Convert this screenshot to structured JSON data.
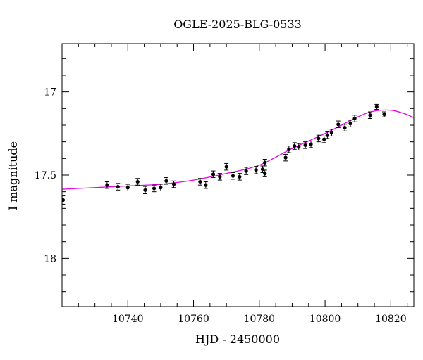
{
  "chart_data": {
    "type": "scatter",
    "title": "OGLE-2025-BLG-0533",
    "xlabel": "HJD - 2450000",
    "ylabel": "I magnitude",
    "xlim": [
      10720.0,
      10827.0
    ],
    "ylim": [
      18.29,
      16.71
    ],
    "y_inverted": true,
    "x_ticks_major": [
      10740,
      10760,
      10780,
      10800,
      10820
    ],
    "x_tick_labels": [
      "10740",
      "10760",
      "10780",
      "10800",
      "10820"
    ],
    "y_ticks_major": [
      17.0,
      17.5,
      18.0
    ],
    "y_tick_labels": [
      "17",
      "17.5",
      "18"
    ],
    "grid": false,
    "colors": {
      "data": "#000000",
      "model": "#e600e6"
    },
    "series": [
      {
        "type": "scatter_errorbar",
        "points": [
          {
            "x": 10720.3,
            "y": 17.65,
            "err": 0.025
          },
          {
            "x": 10733.7,
            "y": 17.56,
            "err": 0.02
          },
          {
            "x": 10737.0,
            "y": 17.57,
            "err": 0.02
          },
          {
            "x": 10740.0,
            "y": 17.575,
            "err": 0.02
          },
          {
            "x": 10743.0,
            "y": 17.54,
            "err": 0.02
          },
          {
            "x": 10745.3,
            "y": 17.59,
            "err": 0.022
          },
          {
            "x": 10748.0,
            "y": 17.58,
            "err": 0.02
          },
          {
            "x": 10750.0,
            "y": 17.575,
            "err": 0.02
          },
          {
            "x": 10751.7,
            "y": 17.535,
            "err": 0.02
          },
          {
            "x": 10754.0,
            "y": 17.555,
            "err": 0.02
          },
          {
            "x": 10762.0,
            "y": 17.54,
            "err": 0.02
          },
          {
            "x": 10763.7,
            "y": 17.56,
            "err": 0.02
          },
          {
            "x": 10766.0,
            "y": 17.495,
            "err": 0.02
          },
          {
            "x": 10768.0,
            "y": 17.51,
            "err": 0.02
          },
          {
            "x": 10770.0,
            "y": 17.45,
            "err": 0.02
          },
          {
            "x": 10772.0,
            "y": 17.505,
            "err": 0.02
          },
          {
            "x": 10774.0,
            "y": 17.51,
            "err": 0.02
          },
          {
            "x": 10776.0,
            "y": 17.475,
            "err": 0.022
          },
          {
            "x": 10779.0,
            "y": 17.47,
            "err": 0.022
          },
          {
            "x": 10781.0,
            "y": 17.465,
            "err": 0.02
          },
          {
            "x": 10781.7,
            "y": 17.425,
            "err": 0.02
          },
          {
            "x": 10781.7,
            "y": 17.49,
            "err": 0.02
          },
          {
            "x": 10788.0,
            "y": 17.395,
            "err": 0.02
          },
          {
            "x": 10789.0,
            "y": 17.345,
            "err": 0.02
          },
          {
            "x": 10790.7,
            "y": 17.325,
            "err": 0.02
          },
          {
            "x": 10792.0,
            "y": 17.33,
            "err": 0.02
          },
          {
            "x": 10794.0,
            "y": 17.32,
            "err": 0.02
          },
          {
            "x": 10795.7,
            "y": 17.315,
            "err": 0.02
          },
          {
            "x": 10798.0,
            "y": 17.28,
            "err": 0.02
          },
          {
            "x": 10799.7,
            "y": 17.285,
            "err": 0.02
          },
          {
            "x": 10800.7,
            "y": 17.26,
            "err": 0.02
          },
          {
            "x": 10802.0,
            "y": 17.245,
            "err": 0.02
          },
          {
            "x": 10804.0,
            "y": 17.195,
            "err": 0.02
          },
          {
            "x": 10806.0,
            "y": 17.215,
            "err": 0.02
          },
          {
            "x": 10807.7,
            "y": 17.19,
            "err": 0.02
          },
          {
            "x": 10809.0,
            "y": 17.16,
            "err": 0.02
          },
          {
            "x": 10813.7,
            "y": 17.14,
            "err": 0.02
          },
          {
            "x": 10815.7,
            "y": 17.09,
            "err": 0.015
          },
          {
            "x": 10818.0,
            "y": 17.135,
            "err": 0.015
          }
        ]
      },
      {
        "type": "line",
        "points": [
          {
            "x": 10720.0,
            "y": 17.585
          },
          {
            "x": 10730.0,
            "y": 17.575
          },
          {
            "x": 10740.0,
            "y": 17.565
          },
          {
            "x": 10750.0,
            "y": 17.555
          },
          {
            "x": 10760.0,
            "y": 17.53
          },
          {
            "x": 10770.0,
            "y": 17.49
          },
          {
            "x": 10780.0,
            "y": 17.44
          },
          {
            "x": 10790.0,
            "y": 17.34
          },
          {
            "x": 10800.0,
            "y": 17.25
          },
          {
            "x": 10810.0,
            "y": 17.15
          },
          {
            "x": 10815.0,
            "y": 17.115
          },
          {
            "x": 10820.0,
            "y": 17.11
          },
          {
            "x": 10824.0,
            "y": 17.13
          },
          {
            "x": 10827.0,
            "y": 17.155
          }
        ]
      }
    ]
  }
}
